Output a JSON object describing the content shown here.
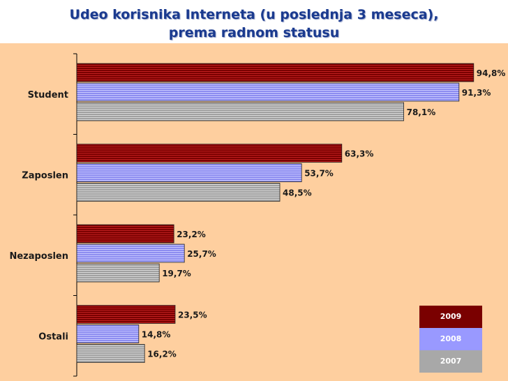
{
  "title": {
    "line1": "Udeo korisnika Interneta (u poslednja 3 meseca),",
    "line2": "prema radnom statusu"
  },
  "colors": {
    "background": "#fecf9f",
    "title_text": "#1a3a8f"
  },
  "chart_data": {
    "type": "bar",
    "orientation": "horizontal",
    "title": "Udeo korisnika Interneta (u poslednja 3 meseca), prema radnom statusu",
    "categories": [
      "Student",
      "Zaposlen",
      "Nezaposlen",
      "Ostali"
    ],
    "series": [
      {
        "name": "2009",
        "values": [
          94.8,
          63.3,
          23.2,
          23.5
        ],
        "labels": [
          "94,8%",
          "63,3%",
          "23,2%",
          "23,5%"
        ],
        "color": "#7a0000"
      },
      {
        "name": "2008",
        "values": [
          91.3,
          53.7,
          25.7,
          14.8
        ],
        "labels": [
          "91,3%",
          "53,7%",
          "25,7%",
          "14,8%"
        ],
        "color": "#9999ff"
      },
      {
        "name": "2007",
        "values": [
          78.1,
          48.5,
          19.7,
          16.2
        ],
        "labels": [
          "78,1%",
          "48,5%",
          "19,7%",
          "16,2%"
        ],
        "color": "#a8a8a8"
      }
    ],
    "xlim": [
      0,
      100
    ],
    "grid": false,
    "legend_position": "bottom-right"
  },
  "legend": {
    "items": [
      {
        "label": "2009",
        "color": "#7a0000"
      },
      {
        "label": "2008",
        "color": "#9999ff"
      },
      {
        "label": "2007",
        "color": "#a8a8a8"
      }
    ]
  }
}
